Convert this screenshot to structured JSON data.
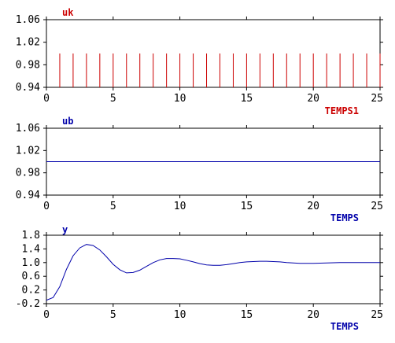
{
  "chart_data": [
    {
      "type": "bar",
      "title": "uk",
      "xlabel": "TEMPS1",
      "ylabel": "",
      "color": "#cc0000",
      "xlim": [
        0,
        25
      ],
      "ylim": [
        0.94,
        1.06
      ],
      "xticks": [
        "0",
        "5",
        "10",
        "15",
        "20",
        "25"
      ],
      "yticks": [
        "0.94",
        "0.98",
        "1.02",
        "1.06"
      ],
      "grid": false,
      "x": [
        1,
        2,
        3,
        4,
        5,
        6,
        7,
        8,
        9,
        10,
        11,
        12,
        13,
        14,
        15,
        16,
        17,
        18,
        19,
        20,
        21,
        22,
        23,
        24,
        25
      ],
      "values": [
        1,
        1,
        1,
        1,
        1,
        1,
        1,
        1,
        1,
        1,
        1,
        1,
        1,
        1,
        1,
        1,
        1,
        1,
        1,
        1,
        1,
        1,
        1,
        1,
        1
      ]
    },
    {
      "type": "line",
      "title": "ub",
      "xlabel": "TEMPS",
      "ylabel": "",
      "color": "#0000aa",
      "xlim": [
        0,
        25
      ],
      "ylim": [
        0.94,
        1.06
      ],
      "xticks": [
        "0",
        "5",
        "10",
        "15",
        "20",
        "25"
      ],
      "yticks": [
        "0.94",
        "0.98",
        "1.02",
        "1.06"
      ],
      "grid": false,
      "x": [
        0,
        25
      ],
      "y": [
        1.0,
        1.0
      ]
    },
    {
      "type": "line",
      "title": "y",
      "xlabel": "TEMPS",
      "ylabel": "",
      "color": "#0000aa",
      "xlim": [
        0,
        25
      ],
      "ylim": [
        -0.2,
        1.8
      ],
      "xticks": [
        "0",
        "5",
        "10",
        "15",
        "20",
        "25"
      ],
      "yticks": [
        "-0.2",
        "0.2",
        "0.6",
        "1.0",
        "1.4",
        "1.8"
      ],
      "grid": false,
      "x": [
        0,
        0.5,
        1,
        1.5,
        2,
        2.5,
        3,
        3.5,
        4,
        4.5,
        5,
        5.5,
        6,
        6.5,
        7,
        7.5,
        8,
        8.5,
        9,
        9.5,
        10,
        10.5,
        11,
        11.5,
        12,
        12.5,
        13,
        13.5,
        14,
        14.5,
        15,
        15.5,
        16,
        16.5,
        17,
        17.5,
        18,
        18.5,
        19,
        19.5,
        20,
        21,
        22,
        23,
        24,
        25
      ],
      "y": [
        -0.1,
        -0.02,
        0.3,
        0.8,
        1.2,
        1.43,
        1.53,
        1.5,
        1.37,
        1.17,
        0.95,
        0.79,
        0.7,
        0.71,
        0.78,
        0.89,
        1.0,
        1.08,
        1.12,
        1.12,
        1.11,
        1.07,
        1.02,
        0.97,
        0.93,
        0.92,
        0.92,
        0.94,
        0.97,
        1.0,
        1.02,
        1.03,
        1.04,
        1.04,
        1.03,
        1.02,
        1.0,
        0.99,
        0.98,
        0.98,
        0.98,
        0.99,
        1.0,
        1.0,
        1.0,
        1.0
      ]
    }
  ]
}
